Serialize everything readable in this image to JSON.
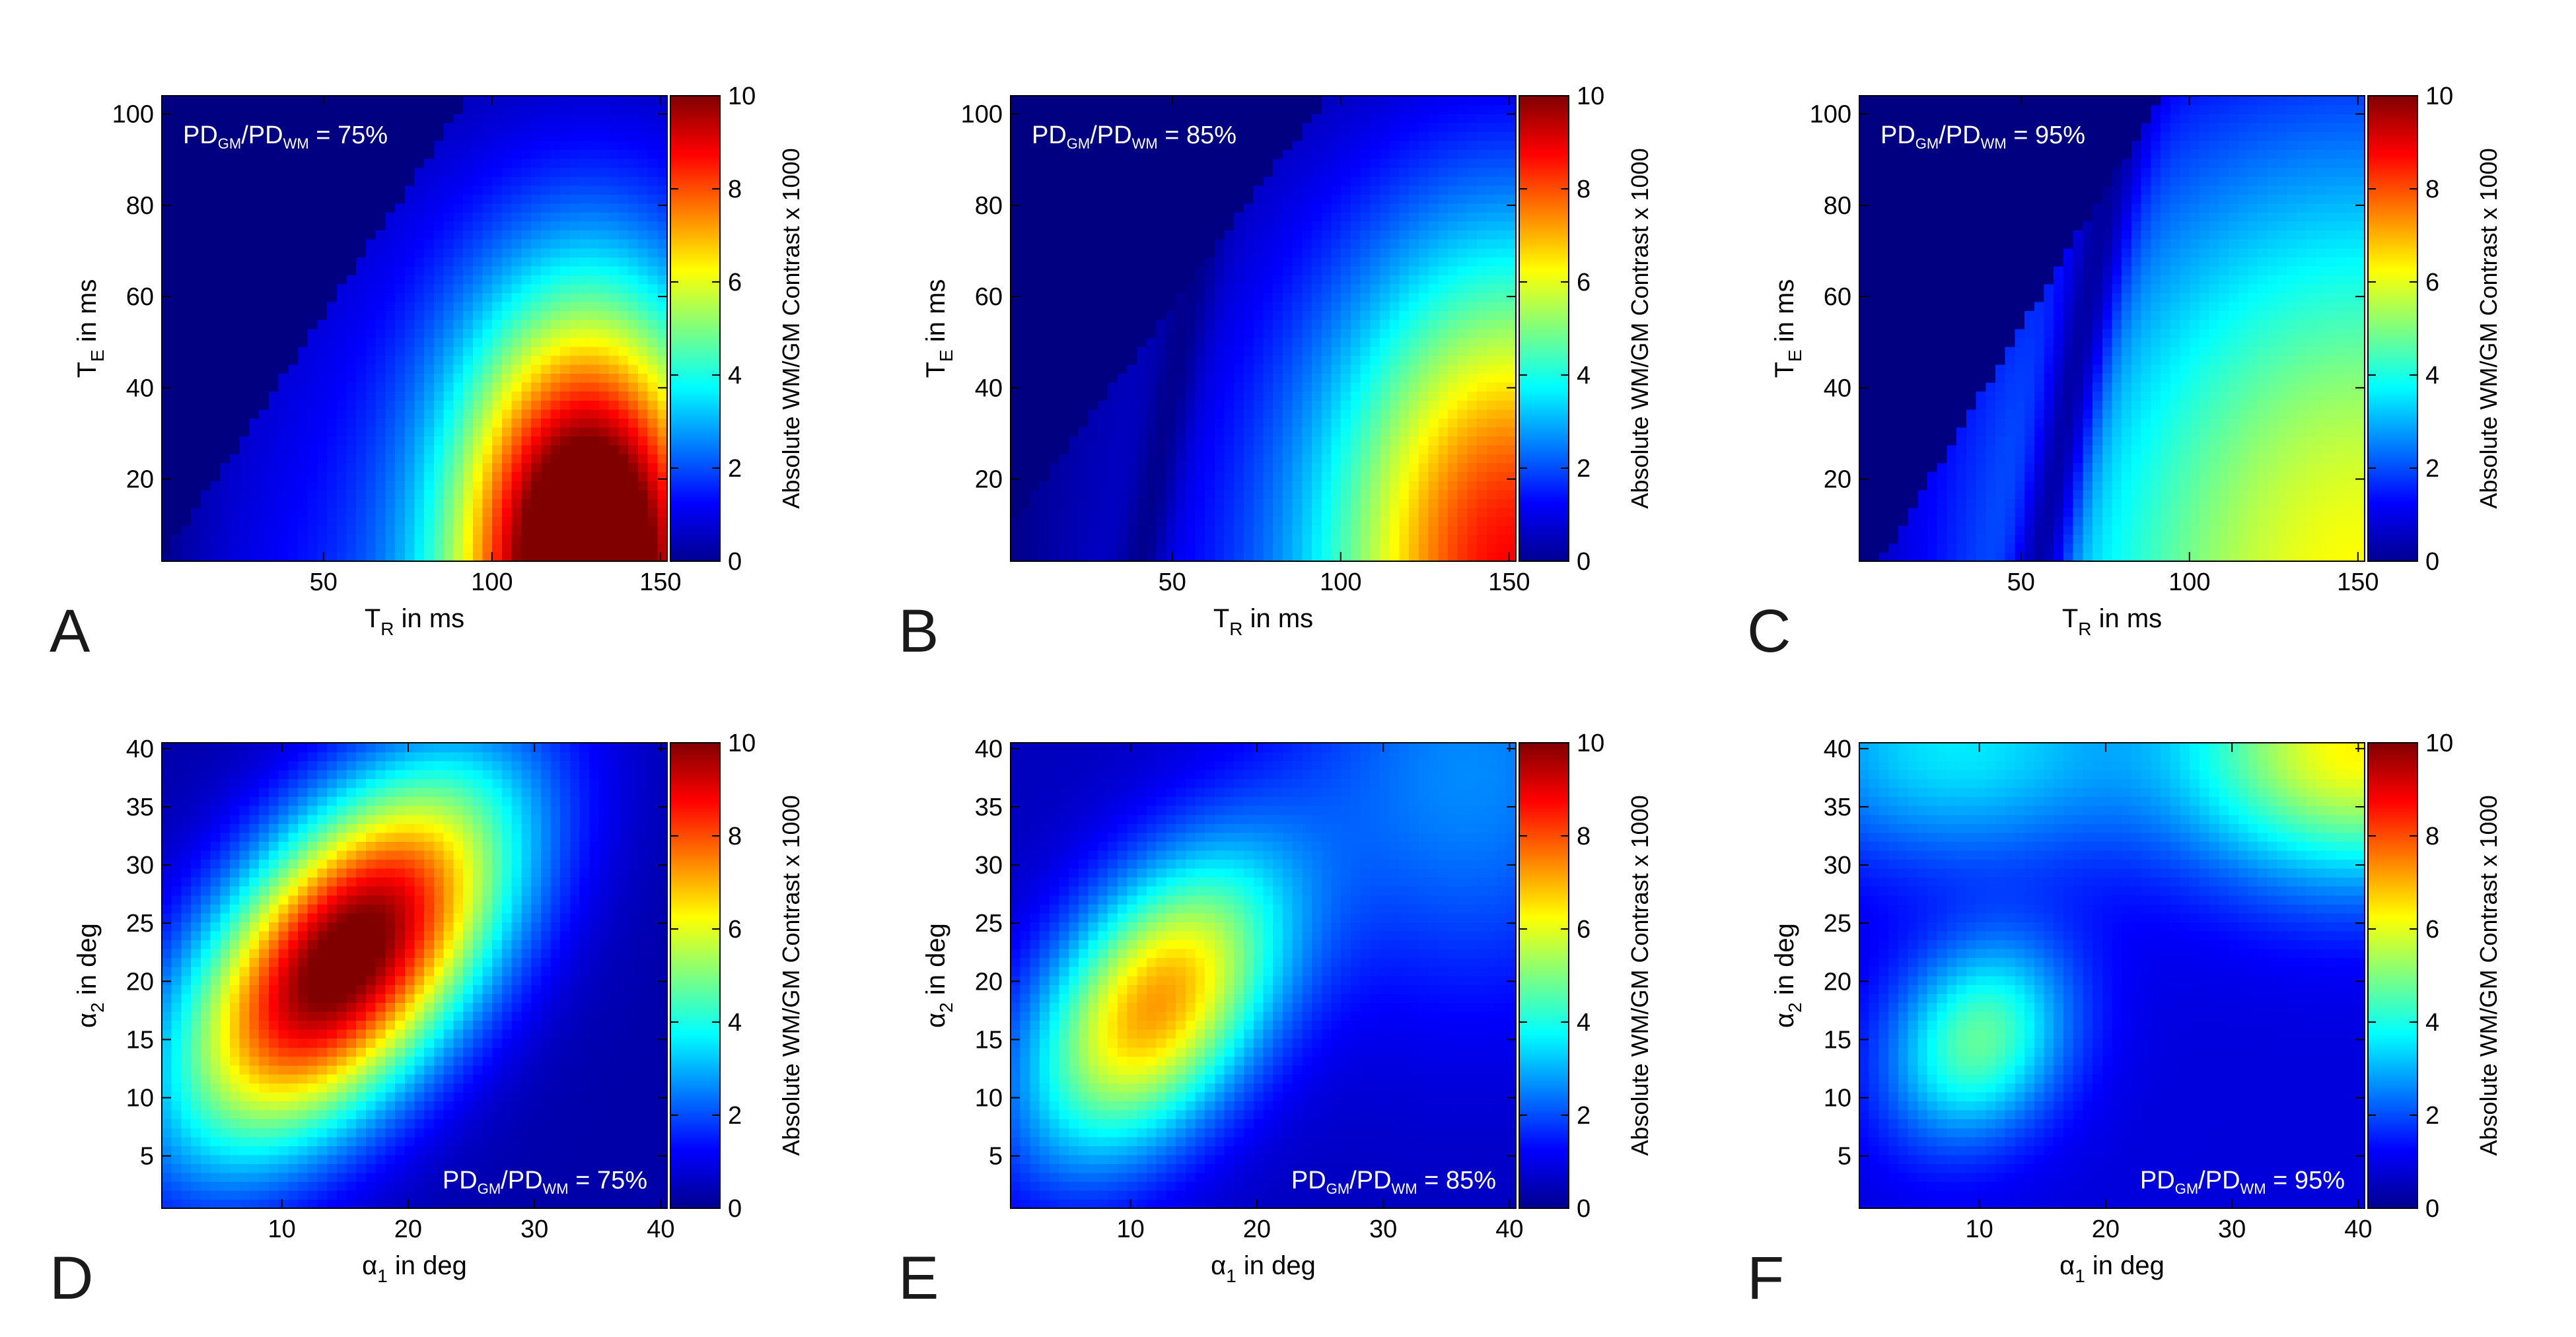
{
  "chart_data": [
    {
      "type": "heatmap",
      "panel": "A",
      "annotation": {
        "num": "PD",
        "num_sub": "GM",
        "den": "PD",
        "den_sub": "WM",
        "value": " = 75%"
      },
      "xlabel": {
        "main": "T",
        "sub": "R",
        "rest": " in ms"
      },
      "ylabel": {
        "main": "T",
        "sub": "E",
        "rest": " in ms"
      },
      "xlim": [
        2,
        152
      ],
      "ylim": [
        2,
        104
      ],
      "xticks": [
        50,
        100,
        150
      ],
      "yticks": [
        20,
        40,
        60,
        80,
        100
      ],
      "clim": [
        0,
        10
      ],
      "cticks": [
        0,
        2,
        4,
        6,
        8,
        10
      ],
      "colorbar_label": "Absolute WM/GM Contrast x 1000",
      "colormap": "jet",
      "model": {
        "kind": "te_tr",
        "peak": 10.8,
        "tr0": 128,
        "te0": 2,
        "tr_w": 38,
        "te_w": 55,
        "base": 2.0,
        "cutoff_slope": 1.12,
        "cutoff_offset": 0,
        "dip_center": 0,
        "dip_w": 0
      }
    },
    {
      "type": "heatmap",
      "panel": "B",
      "annotation": {
        "num": "PD",
        "num_sub": "GM",
        "den": "PD",
        "den_sub": "WM",
        "value": " = 85%"
      },
      "xlabel": {
        "main": "T",
        "sub": "R",
        "rest": " in ms"
      },
      "ylabel": {
        "main": "T",
        "sub": "E",
        "rest": " in ms"
      },
      "xlim": [
        2,
        152
      ],
      "ylim": [
        2,
        104
      ],
      "xticks": [
        50,
        100,
        150
      ],
      "yticks": [
        20,
        40,
        60,
        80,
        100
      ],
      "clim": [
        0,
        10
      ],
      "cticks": [
        0,
        2,
        4,
        6,
        8,
        10
      ],
      "colorbar_label": "Absolute WM/GM Contrast x 1000",
      "colormap": "jet",
      "model": {
        "kind": "te_tr",
        "peak": 7.6,
        "tr0": 150,
        "te0": 2,
        "tr_w": 55,
        "te_w": 70,
        "base": 1.2,
        "cutoff_slope": 1.0,
        "cutoff_offset": 8,
        "dip_center": 40,
        "dip_w": 7
      }
    },
    {
      "type": "heatmap",
      "panel": "C",
      "annotation": {
        "num": "PD",
        "num_sub": "GM",
        "den": "PD",
        "den_sub": "WM",
        "value": " = 95%"
      },
      "xlabel": {
        "main": "T",
        "sub": "R",
        "rest": " in ms"
      },
      "ylabel": {
        "main": "T",
        "sub": "E",
        "rest": " in ms"
      },
      "xlim": [
        2,
        152
      ],
      "ylim": [
        2,
        104
      ],
      "xticks": [
        50,
        100,
        150
      ],
      "yticks": [
        20,
        40,
        60,
        80,
        100
      ],
      "clim": [
        0,
        10
      ],
      "cticks": [
        0,
        2,
        4,
        6,
        8,
        10
      ],
      "colorbar_label": "Absolute WM/GM Contrast x 1000",
      "colormap": "jet",
      "model": {
        "kind": "te_tr",
        "peak": 4.8,
        "tr0": 150,
        "te0": 2,
        "tr_w": 90,
        "te_w": 95,
        "base": 1.5,
        "cutoff_slope": 1.22,
        "cutoff_offset": -8,
        "dip_center": 55,
        "dip_w": 9
      }
    },
    {
      "type": "heatmap",
      "panel": "D",
      "annotation": {
        "num": "PD",
        "num_sub": "GM",
        "den": "PD",
        "den_sub": "WM",
        "value": " = 75%"
      },
      "xlabel": {
        "main": "α",
        "sub": "1",
        "rest": " in deg"
      },
      "ylabel": {
        "main": "α",
        "sub": "2",
        "rest": " in deg"
      },
      "xlim": [
        0.5,
        40.5
      ],
      "ylim": [
        0.5,
        40.5
      ],
      "xticks": [
        10,
        20,
        30,
        40
      ],
      "yticks": [
        5,
        10,
        15,
        20,
        25,
        30,
        35,
        40
      ],
      "clim": [
        0,
        10
      ],
      "cticks": [
        0,
        2,
        4,
        6,
        8,
        10
      ],
      "colorbar_label": "Absolute WM/GM Contrast x 1000",
      "colormap": "jet",
      "model": {
        "kind": "alpha",
        "blobs": [
          {
            "a1": 15,
            "a2": 22,
            "amp": 10.2,
            "s1": 9,
            "s2": 11,
            "rho": 0.55
          }
        ],
        "ridge": null,
        "base": 0.4
      }
    },
    {
      "type": "heatmap",
      "panel": "E",
      "annotation": {
        "num": "PD",
        "num_sub": "GM",
        "den": "PD",
        "den_sub": "WM",
        "value": " = 85%"
      },
      "xlabel": {
        "main": "α",
        "sub": "1",
        "rest": " in deg"
      },
      "ylabel": {
        "main": "α",
        "sub": "2",
        "rest": " in deg"
      },
      "xlim": [
        0.5,
        40.5
      ],
      "ylim": [
        0.5,
        40.5
      ],
      "xticks": [
        10,
        20,
        30,
        40
      ],
      "yticks": [
        5,
        10,
        15,
        20,
        25,
        30,
        35,
        40
      ],
      "clim": [
        0,
        10
      ],
      "cticks": [
        0,
        2,
        4,
        6,
        8,
        10
      ],
      "colorbar_label": "Absolute WM/GM Contrast x 1000",
      "colormap": "jet",
      "model": {
        "kind": "alpha",
        "blobs": [
          {
            "a1": 12,
            "a2": 18,
            "amp": 6.6,
            "s1": 7,
            "s2": 9,
            "rho": 0.45
          }
        ],
        "ridge": {
          "a1": 37,
          "a2": 38,
          "amp": 2.0,
          "s1": 10,
          "s2": 14
        },
        "base": 0.6
      }
    },
    {
      "type": "heatmap",
      "panel": "F",
      "annotation": {
        "num": "PD",
        "num_sub": "GM",
        "den": "PD",
        "den_sub": "WM",
        "value": " = 95%"
      },
      "xlabel": {
        "main": "α",
        "sub": "1",
        "rest": " in deg"
      },
      "ylabel": {
        "main": "α",
        "sub": "2",
        "rest": " in deg"
      },
      "xlim": [
        0.5,
        40.5
      ],
      "ylim": [
        0.5,
        40.5
      ],
      "xticks": [
        10,
        20,
        30,
        40
      ],
      "yticks": [
        5,
        10,
        15,
        20,
        25,
        30,
        35,
        40
      ],
      "clim": [
        0,
        10
      ],
      "cticks": [
        0,
        2,
        4,
        6,
        8,
        10
      ],
      "colorbar_label": "Absolute WM/GM Contrast x 1000",
      "colormap": "jet",
      "model": {
        "kind": "alpha",
        "blobs": [
          {
            "a1": 10,
            "a2": 15,
            "amp": 3.8,
            "s1": 5,
            "s2": 6,
            "rho": 0.2
          },
          {
            "a1": 40,
            "a2": 40,
            "amp": 5.4,
            "s1": 10,
            "s2": 8,
            "rho": 0
          },
          {
            "a1": 8,
            "a2": 40,
            "amp": 2.6,
            "s1": 10,
            "s2": 7,
            "rho": 0
          }
        ],
        "ridge": null,
        "base": 0.9
      }
    }
  ]
}
